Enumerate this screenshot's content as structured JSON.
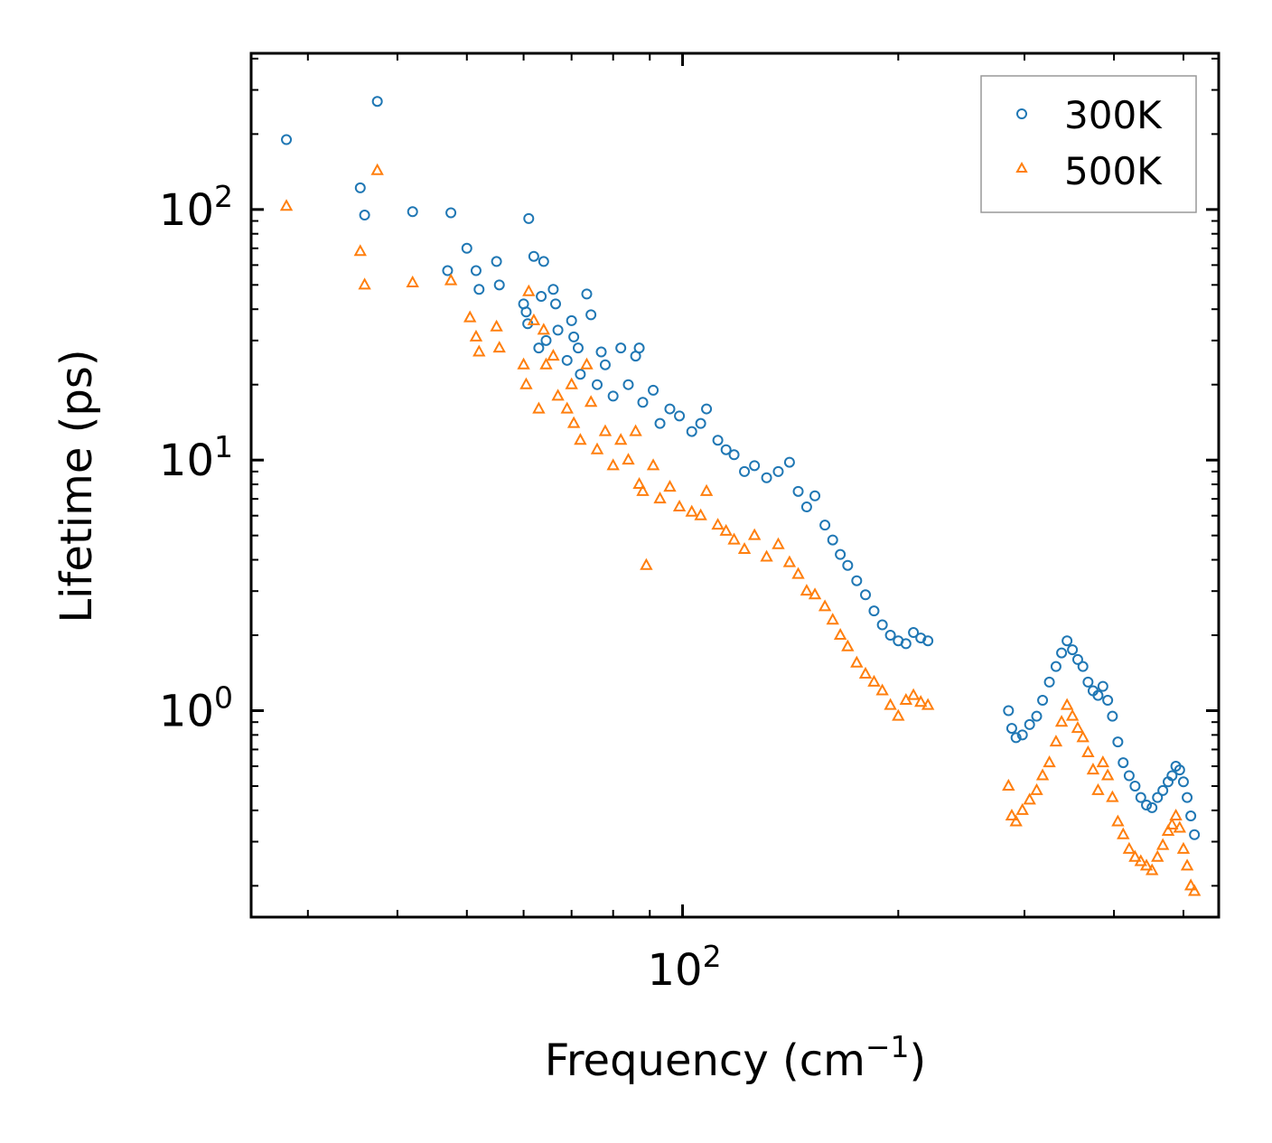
{
  "chart_data": {
    "type": "scatter",
    "x_scale": "log",
    "y_scale": "log",
    "xlabel": "Frequency (cm",
    "xlabel_sup": "−1",
    "xlabel_end": ")",
    "ylabel": "Lifetime (ps)",
    "xlim": [
      25,
      560
    ],
    "ylim": [
      0.15,
      420
    ],
    "x_ticks": [
      {
        "base": "10",
        "exp": "2",
        "value": 100
      }
    ],
    "y_ticks": [
      {
        "base": "10",
        "exp": "0",
        "value": 1
      },
      {
        "base": "10",
        "exp": "1",
        "value": 10
      },
      {
        "base": "10",
        "exp": "2",
        "value": 100
      }
    ],
    "legend_position": "top-right",
    "series": [
      {
        "name": "300K",
        "marker": "circle",
        "color": "#1f77b4",
        "points": [
          [
            28,
            190
          ],
          [
            35.5,
            122
          ],
          [
            36,
            95
          ],
          [
            37.5,
            270
          ],
          [
            42,
            98
          ],
          [
            47,
            57
          ],
          [
            47.5,
            97
          ],
          [
            50,
            70
          ],
          [
            51.5,
            57
          ],
          [
            52,
            48
          ],
          [
            55,
            62
          ],
          [
            55.5,
            50
          ],
          [
            60,
            42
          ],
          [
            60.5,
            39
          ],
          [
            60.8,
            35
          ],
          [
            61,
            92
          ],
          [
            62,
            65
          ],
          [
            63,
            28
          ],
          [
            63.5,
            45
          ],
          [
            64,
            62
          ],
          [
            64.5,
            30
          ],
          [
            66,
            48
          ],
          [
            66.5,
            42
          ],
          [
            67,
            33
          ],
          [
            69,
            25
          ],
          [
            70,
            36
          ],
          [
            70.5,
            31
          ],
          [
            71.5,
            28
          ],
          [
            72,
            22
          ],
          [
            73.5,
            46
          ],
          [
            74.5,
            38
          ],
          [
            76,
            20
          ],
          [
            77,
            27
          ],
          [
            78,
            24
          ],
          [
            80,
            18
          ],
          [
            82,
            28
          ],
          [
            84,
            20
          ],
          [
            86,
            26
          ],
          [
            87,
            28
          ],
          [
            88,
            17
          ],
          [
            91,
            19
          ],
          [
            93,
            14
          ],
          [
            96,
            16
          ],
          [
            99,
            15
          ],
          [
            103,
            13
          ],
          [
            106,
            14
          ],
          [
            108,
            16
          ],
          [
            112,
            12
          ],
          [
            115,
            11
          ],
          [
            118,
            10.5
          ],
          [
            122,
            9
          ],
          [
            126,
            9.5
          ],
          [
            131,
            8.5
          ],
          [
            136,
            9
          ],
          [
            141,
            9.8
          ],
          [
            145,
            7.5
          ],
          [
            149,
            6.5
          ],
          [
            153,
            7.2
          ],
          [
            158,
            5.5
          ],
          [
            162,
            4.8
          ],
          [
            166,
            4.2
          ],
          [
            170,
            3.8
          ],
          [
            175,
            3.3
          ],
          [
            180,
            2.9
          ],
          [
            185,
            2.5
          ],
          [
            190,
            2.2
          ],
          [
            195,
            2.0
          ],
          [
            200,
            1.9
          ],
          [
            205,
            1.85
          ],
          [
            210,
            2.05
          ],
          [
            215,
            1.95
          ],
          [
            220,
            1.9
          ],
          [
            285,
            1.0
          ],
          [
            288,
            0.85
          ],
          [
            292,
            0.78
          ],
          [
            298,
            0.8
          ],
          [
            305,
            0.88
          ],
          [
            312,
            0.95
          ],
          [
            318,
            1.1
          ],
          [
            325,
            1.3
          ],
          [
            332,
            1.5
          ],
          [
            338,
            1.7
          ],
          [
            344,
            1.9
          ],
          [
            350,
            1.75
          ],
          [
            356,
            1.6
          ],
          [
            362,
            1.5
          ],
          [
            368,
            1.3
          ],
          [
            374,
            1.2
          ],
          [
            380,
            1.15
          ],
          [
            386,
            1.25
          ],
          [
            392,
            1.1
          ],
          [
            398,
            0.95
          ],
          [
            405,
            0.75
          ],
          [
            412,
            0.62
          ],
          [
            420,
            0.55
          ],
          [
            428,
            0.5
          ],
          [
            436,
            0.45
          ],
          [
            444,
            0.42
          ],
          [
            452,
            0.41
          ],
          [
            460,
            0.45
          ],
          [
            468,
            0.48
          ],
          [
            476,
            0.52
          ],
          [
            482,
            0.55
          ],
          [
            488,
            0.6
          ],
          [
            494,
            0.58
          ],
          [
            500,
            0.52
          ],
          [
            506,
            0.45
          ],
          [
            512,
            0.38
          ],
          [
            518,
            0.32
          ]
        ]
      },
      {
        "name": "500K",
        "marker": "triangle",
        "color": "#ff7f0e",
        "points": [
          [
            28,
            103
          ],
          [
            35.5,
            68
          ],
          [
            36,
            50
          ],
          [
            37.5,
            143
          ],
          [
            42,
            51
          ],
          [
            47.5,
            52
          ],
          [
            50.5,
            37
          ],
          [
            51.5,
            31
          ],
          [
            52,
            27
          ],
          [
            55,
            34
          ],
          [
            55.5,
            28
          ],
          [
            60,
            24
          ],
          [
            60.5,
            20
          ],
          [
            61,
            47
          ],
          [
            62,
            36
          ],
          [
            63,
            16
          ],
          [
            64,
            33
          ],
          [
            64.5,
            24
          ],
          [
            66,
            26
          ],
          [
            67,
            18
          ],
          [
            69,
            16
          ],
          [
            70,
            20
          ],
          [
            70.5,
            14
          ],
          [
            72,
            12
          ],
          [
            73.5,
            24
          ],
          [
            74.5,
            17
          ],
          [
            76,
            11
          ],
          [
            78,
            13
          ],
          [
            80,
            9.5
          ],
          [
            82,
            12
          ],
          [
            84,
            10
          ],
          [
            86,
            13
          ],
          [
            87,
            8
          ],
          [
            88,
            7.5
          ],
          [
            89,
            3.8
          ],
          [
            91,
            9.5
          ],
          [
            93,
            7
          ],
          [
            96,
            7.8
          ],
          [
            99,
            6.5
          ],
          [
            103,
            6.2
          ],
          [
            106,
            6
          ],
          [
            108,
            7.5
          ],
          [
            112,
            5.5
          ],
          [
            115,
            5.2
          ],
          [
            118,
            4.8
          ],
          [
            122,
            4.4
          ],
          [
            126,
            5
          ],
          [
            131,
            4.1
          ],
          [
            136,
            4.6
          ],
          [
            141,
            3.9
          ],
          [
            145,
            3.5
          ],
          [
            149,
            3.0
          ],
          [
            153,
            2.9
          ],
          [
            158,
            2.6
          ],
          [
            162,
            2.3
          ],
          [
            166,
            2.0
          ],
          [
            170,
            1.8
          ],
          [
            175,
            1.55
          ],
          [
            180,
            1.4
          ],
          [
            185,
            1.3
          ],
          [
            190,
            1.2
          ],
          [
            195,
            1.05
          ],
          [
            200,
            0.95
          ],
          [
            205,
            1.1
          ],
          [
            210,
            1.15
          ],
          [
            215,
            1.08
          ],
          [
            220,
            1.05
          ],
          [
            285,
            0.5
          ],
          [
            288,
            0.38
          ],
          [
            292,
            0.36
          ],
          [
            298,
            0.4
          ],
          [
            305,
            0.44
          ],
          [
            312,
            0.48
          ],
          [
            318,
            0.55
          ],
          [
            325,
            0.62
          ],
          [
            332,
            0.75
          ],
          [
            338,
            0.9
          ],
          [
            344,
            1.05
          ],
          [
            350,
            0.95
          ],
          [
            356,
            0.85
          ],
          [
            362,
            0.78
          ],
          [
            368,
            0.68
          ],
          [
            374,
            0.58
          ],
          [
            380,
            0.48
          ],
          [
            386,
            0.62
          ],
          [
            392,
            0.55
          ],
          [
            398,
            0.45
          ],
          [
            405,
            0.36
          ],
          [
            412,
            0.32
          ],
          [
            420,
            0.28
          ],
          [
            428,
            0.26
          ],
          [
            436,
            0.25
          ],
          [
            444,
            0.24
          ],
          [
            452,
            0.23
          ],
          [
            460,
            0.26
          ],
          [
            468,
            0.29
          ],
          [
            476,
            0.33
          ],
          [
            482,
            0.35
          ],
          [
            488,
            0.38
          ],
          [
            494,
            0.34
          ],
          [
            500,
            0.28
          ],
          [
            506,
            0.24
          ],
          [
            512,
            0.2
          ],
          [
            518,
            0.19
          ]
        ]
      }
    ]
  }
}
